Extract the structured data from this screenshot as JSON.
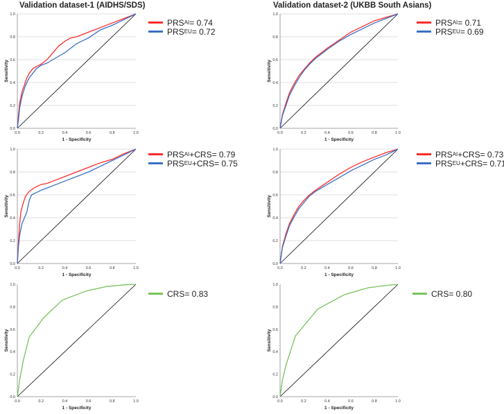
{
  "columns": [
    {
      "title": "Validation dataset-1 (AIDHS/SDS)"
    },
    {
      "title": "Validation dataset-2 (UKBB South Asians)"
    }
  ],
  "axis": {
    "xlabel": "1 - Specificity",
    "ylabel": "Sensitivity",
    "ticks": [
      "0.0",
      "0.2",
      "0.4",
      "0.6",
      "0.8",
      "1.0"
    ]
  },
  "colors": {
    "red": "#ff2a2a",
    "blue": "#3a6fc4",
    "green": "#77c25a",
    "ref": "#000000",
    "grid": "#d4d4d4"
  },
  "legends": [
    [
      {
        "color": "red",
        "base": "PRS",
        "sub": "AI",
        "suffix": "",
        "auc": " = 0.74"
      },
      {
        "color": "blue",
        "base": "PRS",
        "sub": "EU",
        "suffix": "",
        "auc": " = 0.72"
      }
    ],
    [
      {
        "color": "red",
        "base": "PRS",
        "sub": "AI",
        "suffix": "",
        "auc": " = 0.71"
      },
      {
        "color": "blue",
        "base": "PRS",
        "sub": "EU",
        "suffix": "",
        "auc": " = 0.69"
      }
    ],
    [
      {
        "color": "red",
        "base": "PRS",
        "sub": "AI",
        "suffix": "+CRS",
        "auc": " = 0.79"
      },
      {
        "color": "blue",
        "base": "PRS",
        "sub": "EU",
        "suffix": "+CRS",
        "auc": " = 0.75"
      }
    ],
    [
      {
        "color": "red",
        "base": "PRS",
        "sub": "AI",
        "suffix": "+CRS",
        "auc": " = 0.73"
      },
      {
        "color": "blue",
        "base": "PRS",
        "sub": "EU",
        "suffix": "+CRS",
        "auc": " = 0.71"
      }
    ],
    [
      {
        "color": "green",
        "base": "CRS",
        "sub": "",
        "suffix": "",
        "auc": " = 0.83"
      }
    ],
    [
      {
        "color": "green",
        "base": "CRS",
        "sub": "",
        "suffix": "",
        "auc": " = 0.80"
      }
    ]
  ],
  "chart_data": [
    {
      "type": "line",
      "title": "Validation dataset-1 (AIDHS/SDS)",
      "xlabel": "1 - Specificity",
      "ylabel": "Sensitivity",
      "xlim": [
        0,
        1
      ],
      "ylim": [
        0,
        1
      ],
      "grid": "horizontal",
      "legend": "right",
      "series": [
        {
          "name": "PRS_AI = 0.74",
          "color": "red",
          "x": [
            0,
            0.01,
            0.02,
            0.04,
            0.06,
            0.08,
            0.1,
            0.13,
            0.16,
            0.2,
            0.25,
            0.3,
            0.35,
            0.4,
            0.45,
            0.5,
            0.6,
            0.7,
            0.8,
            0.9,
            1.0
          ],
          "y": [
            0,
            0.12,
            0.22,
            0.32,
            0.38,
            0.44,
            0.48,
            0.52,
            0.54,
            0.56,
            0.6,
            0.66,
            0.72,
            0.76,
            0.79,
            0.8,
            0.84,
            0.88,
            0.92,
            0.96,
            1.0
          ]
        },
        {
          "name": "PRS_EU = 0.72",
          "color": "blue",
          "x": [
            0,
            0.01,
            0.02,
            0.04,
            0.06,
            0.08,
            0.1,
            0.13,
            0.16,
            0.2,
            0.25,
            0.3,
            0.35,
            0.4,
            0.45,
            0.5,
            0.6,
            0.7,
            0.8,
            0.9,
            1.0
          ],
          "y": [
            0,
            0.08,
            0.18,
            0.28,
            0.35,
            0.4,
            0.44,
            0.48,
            0.52,
            0.55,
            0.57,
            0.6,
            0.63,
            0.66,
            0.7,
            0.74,
            0.79,
            0.86,
            0.9,
            0.95,
            1.0
          ]
        },
        {
          "name": "reference",
          "color": "ref",
          "x": [
            0,
            1
          ],
          "y": [
            0,
            1
          ]
        }
      ]
    },
    {
      "type": "line",
      "title": "Validation dataset-2 (UKBB South Asians)",
      "xlabel": "1 - Specificity",
      "ylabel": "Sensitivity",
      "xlim": [
        0,
        1
      ],
      "ylim": [
        0,
        1
      ],
      "grid": "horizontal",
      "legend": "right",
      "series": [
        {
          "name": "PRS_AI = 0.71",
          "color": "red",
          "x": [
            0,
            0.02,
            0.05,
            0.08,
            0.12,
            0.16,
            0.2,
            0.25,
            0.3,
            0.35,
            0.4,
            0.5,
            0.6,
            0.7,
            0.8,
            0.9,
            1.0
          ],
          "y": [
            0,
            0.12,
            0.22,
            0.31,
            0.39,
            0.46,
            0.51,
            0.57,
            0.62,
            0.66,
            0.7,
            0.77,
            0.84,
            0.89,
            0.94,
            0.97,
            1.0
          ]
        },
        {
          "name": "PRS_EU = 0.69",
          "color": "blue",
          "x": [
            0,
            0.02,
            0.05,
            0.08,
            0.12,
            0.16,
            0.2,
            0.25,
            0.3,
            0.35,
            0.4,
            0.5,
            0.6,
            0.7,
            0.8,
            0.9,
            1.0
          ],
          "y": [
            0,
            0.11,
            0.2,
            0.29,
            0.37,
            0.44,
            0.5,
            0.56,
            0.61,
            0.65,
            0.69,
            0.76,
            0.82,
            0.87,
            0.92,
            0.96,
            1.0
          ]
        },
        {
          "name": "reference",
          "color": "ref",
          "x": [
            0,
            1
          ],
          "y": [
            0,
            1
          ]
        }
      ]
    },
    {
      "type": "line",
      "title": "Validation dataset-1 (AIDHS/SDS)",
      "xlabel": "1 - Specificity",
      "ylabel": "Sensitivity",
      "xlim": [
        0,
        1
      ],
      "ylim": [
        0,
        1
      ],
      "grid": "horizontal",
      "legend": "right",
      "series": [
        {
          "name": "PRS_AI+CRS = 0.79",
          "color": "red",
          "x": [
            0,
            0.01,
            0.02,
            0.03,
            0.05,
            0.07,
            0.1,
            0.14,
            0.2,
            0.25,
            0.3,
            0.4,
            0.5,
            0.6,
            0.7,
            0.8,
            0.9,
            1.0
          ],
          "y": [
            0,
            0.2,
            0.35,
            0.45,
            0.53,
            0.59,
            0.63,
            0.66,
            0.69,
            0.7,
            0.72,
            0.76,
            0.8,
            0.84,
            0.88,
            0.91,
            0.96,
            1.0
          ]
        },
        {
          "name": "PRS_EU+CRS = 0.75",
          "color": "blue",
          "x": [
            0,
            0.01,
            0.02,
            0.04,
            0.06,
            0.08,
            0.1,
            0.12,
            0.16,
            0.2,
            0.25,
            0.3,
            0.4,
            0.5,
            0.6,
            0.7,
            0.8,
            0.9,
            1.0
          ],
          "y": [
            0,
            0.15,
            0.25,
            0.35,
            0.4,
            0.45,
            0.55,
            0.6,
            0.62,
            0.64,
            0.66,
            0.68,
            0.72,
            0.76,
            0.8,
            0.85,
            0.9,
            0.95,
            1.0
          ]
        },
        {
          "name": "reference",
          "color": "ref",
          "x": [
            0,
            1
          ],
          "y": [
            0,
            1
          ]
        }
      ]
    },
    {
      "type": "line",
      "title": "Validation dataset-2 (UKBB South Asians)",
      "xlabel": "1 - Specificity",
      "ylabel": "Sensitivity",
      "xlim": [
        0,
        1
      ],
      "ylim": [
        0,
        1
      ],
      "grid": "horizontal",
      "legend": "right",
      "series": [
        {
          "name": "PRS_AI+CRS = 0.73",
          "color": "red",
          "x": [
            0,
            0.02,
            0.05,
            0.08,
            0.12,
            0.16,
            0.2,
            0.25,
            0.3,
            0.4,
            0.5,
            0.6,
            0.7,
            0.8,
            0.9,
            1.0
          ],
          "y": [
            0,
            0.15,
            0.26,
            0.35,
            0.43,
            0.5,
            0.55,
            0.6,
            0.64,
            0.71,
            0.78,
            0.84,
            0.89,
            0.93,
            0.97,
            1.0
          ]
        },
        {
          "name": "PRS_EU+CRS = 0.71",
          "color": "blue",
          "x": [
            0,
            0.02,
            0.05,
            0.08,
            0.12,
            0.16,
            0.2,
            0.25,
            0.3,
            0.4,
            0.5,
            0.6,
            0.7,
            0.8,
            0.9,
            1.0
          ],
          "y": [
            0,
            0.14,
            0.24,
            0.33,
            0.41,
            0.48,
            0.53,
            0.59,
            0.63,
            0.69,
            0.75,
            0.81,
            0.86,
            0.91,
            0.95,
            1.0
          ]
        },
        {
          "name": "reference",
          "color": "ref",
          "x": [
            0,
            1
          ],
          "y": [
            0,
            1
          ]
        }
      ]
    },
    {
      "type": "line",
      "title": "Validation dataset-1 (AIDHS/SDS)",
      "xlabel": "1 - Specificity",
      "ylabel": "Sensitivity",
      "xlim": [
        0,
        1
      ],
      "ylim": [
        0,
        1
      ],
      "grid": "none",
      "legend": "right",
      "series": [
        {
          "name": "CRS = 0.83",
          "color": "green",
          "x": [
            0,
            0.02,
            0.05,
            0.1,
            0.22,
            0.38,
            0.58,
            0.75,
            0.9,
            1.0
          ],
          "y": [
            0,
            0.15,
            0.32,
            0.53,
            0.7,
            0.86,
            0.94,
            0.98,
            0.995,
            1.0
          ]
        },
        {
          "name": "reference",
          "color": "ref",
          "x": [
            0,
            1
          ],
          "y": [
            0,
            1
          ]
        }
      ]
    },
    {
      "type": "line",
      "title": "Validation dataset-2 (UKBB South Asians)",
      "xlabel": "1 - Specificity",
      "ylabel": "Sensitivity",
      "xlim": [
        0,
        1
      ],
      "ylim": [
        0,
        1
      ],
      "grid": "none",
      "legend": "right",
      "series": [
        {
          "name": "CRS = 0.80",
          "color": "green",
          "x": [
            0,
            0.02,
            0.05,
            0.13,
            0.32,
            0.55,
            0.75,
            0.9,
            1.0
          ],
          "y": [
            0,
            0.15,
            0.28,
            0.54,
            0.78,
            0.91,
            0.97,
            0.99,
            1.0
          ]
        },
        {
          "name": "reference",
          "color": "ref",
          "x": [
            0,
            1
          ],
          "y": [
            0,
            1
          ]
        }
      ]
    }
  ]
}
